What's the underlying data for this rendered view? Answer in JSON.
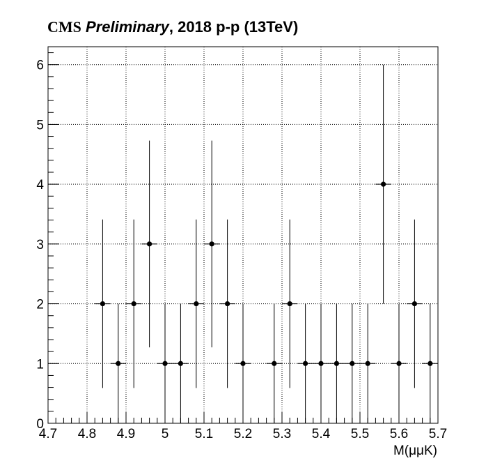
{
  "title": {
    "experiment": "CMS",
    "status": "Preliminary",
    "suffix": ", 2018 p-p (13TeV)"
  },
  "chart_data": {
    "type": "scatter",
    "xlabel": "M(μμK)",
    "ylabel": "",
    "xlim": [
      4.7,
      5.7
    ],
    "ylim": [
      0,
      6.3
    ],
    "x_ticks": [
      "4.7",
      "4.8",
      "4.9",
      "5",
      "5.1",
      "5.2",
      "5.3",
      "5.4",
      "5.5",
      "5.6",
      "5.7"
    ],
    "y_ticks": [
      "0",
      "1",
      "2",
      "3",
      "4",
      "5",
      "6"
    ],
    "grid": true,
    "bin_width": 0.04,
    "points": [
      {
        "x": 4.84,
        "y": 2,
        "err_low": 1.41,
        "err_high": 1.41
      },
      {
        "x": 4.88,
        "y": 1,
        "err_low": 1.0,
        "err_high": 1.0
      },
      {
        "x": 4.92,
        "y": 2,
        "err_low": 1.41,
        "err_high": 1.41
      },
      {
        "x": 4.96,
        "y": 3,
        "err_low": 1.73,
        "err_high": 1.73
      },
      {
        "x": 5.0,
        "y": 1,
        "err_low": 1.0,
        "err_high": 1.0
      },
      {
        "x": 5.04,
        "y": 1,
        "err_low": 1.0,
        "err_high": 1.0
      },
      {
        "x": 5.08,
        "y": 2,
        "err_low": 1.41,
        "err_high": 1.41
      },
      {
        "x": 5.12,
        "y": 3,
        "err_low": 1.73,
        "err_high": 1.73
      },
      {
        "x": 5.16,
        "y": 2,
        "err_low": 1.41,
        "err_high": 1.41
      },
      {
        "x": 5.2,
        "y": 1,
        "err_low": 1.0,
        "err_high": 1.0
      },
      {
        "x": 5.28,
        "y": 1,
        "err_low": 1.0,
        "err_high": 1.0
      },
      {
        "x": 5.32,
        "y": 2,
        "err_low": 1.41,
        "err_high": 1.41
      },
      {
        "x": 5.36,
        "y": 1,
        "err_low": 1.0,
        "err_high": 1.0
      },
      {
        "x": 5.4,
        "y": 1,
        "err_low": 1.0,
        "err_high": 1.0
      },
      {
        "x": 5.44,
        "y": 1,
        "err_low": 1.0,
        "err_high": 1.0
      },
      {
        "x": 5.48,
        "y": 1,
        "err_low": 1.0,
        "err_high": 1.0
      },
      {
        "x": 5.52,
        "y": 1,
        "err_low": 1.0,
        "err_high": 1.0
      },
      {
        "x": 5.56,
        "y": 4,
        "err_low": 2.0,
        "err_high": 2.0
      },
      {
        "x": 5.6,
        "y": 1,
        "err_low": 1.0,
        "err_high": 1.0
      },
      {
        "x": 5.64,
        "y": 2,
        "err_low": 1.41,
        "err_high": 1.41
      },
      {
        "x": 5.68,
        "y": 1,
        "err_low": 1.0,
        "err_high": 1.0
      }
    ]
  }
}
